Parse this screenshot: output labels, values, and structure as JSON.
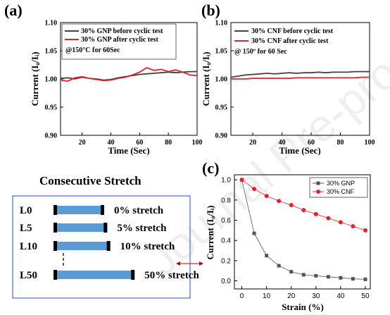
{
  "panels": {
    "a": {
      "tag": "(a)",
      "condition": "@150°C for 60Sec"
    },
    "b": {
      "tag": "(b)",
      "condition": "@ 150º for 60 Sec"
    },
    "c": {
      "tag": "(c)"
    }
  },
  "stretch": {
    "title": "Consecutive Stretch",
    "rows": [
      {
        "label": "L0",
        "text": "0% stretch",
        "fraction": 0.0
      },
      {
        "label": "L5",
        "text": "5% stretch",
        "fraction": 0.05
      },
      {
        "label": "L10",
        "text": "10% stretch",
        "fraction": 0.1
      },
      {
        "label": "L50",
        "text": "50% stretch",
        "fraction": 0.5
      }
    ],
    "bar_color": "#5b9bd5",
    "frame_color": "#4472c4",
    "arrow_color": "#c00000"
  },
  "watermark": "Journal Pre-proofs",
  "chart_data": [
    {
      "id": "a",
      "type": "line",
      "xlabel": "Time (Sec)",
      "ylabel": "Current (I₀/Iᵢ)",
      "xlim": [
        5,
        100
      ],
      "ylim": [
        0.9,
        1.1
      ],
      "xticks": [
        20,
        40,
        60,
        80,
        100
      ],
      "yticks": [
        0.9,
        0.95,
        1.0,
        1.05,
        1.1
      ],
      "legend_position": "top-left",
      "series": [
        {
          "name": "30% GNP before cyclic test",
          "color": "#404040",
          "x": [
            5,
            10,
            15,
            20,
            25,
            30,
            35,
            40,
            45,
            50,
            55,
            60,
            65,
            70,
            75,
            80,
            85,
            90,
            95,
            100
          ],
          "y": [
            1.001,
            1.002,
            1.0,
            1.003,
            1.001,
            1.0,
            0.998,
            0.999,
            1.002,
            1.004,
            1.006,
            1.008,
            1.009,
            1.01,
            1.011,
            1.012,
            1.011,
            1.012,
            1.013,
            1.013
          ]
        },
        {
          "name": "30% GNP after cyclic test",
          "color": "#e8202a",
          "x": [
            5,
            10,
            15,
            20,
            25,
            30,
            35,
            40,
            45,
            50,
            55,
            60,
            65,
            70,
            75,
            80,
            85,
            90,
            95,
            100
          ],
          "y": [
            0.998,
            0.996,
            1.002,
            1.004,
            1.001,
            0.999,
            0.997,
            0.998,
            1.001,
            1.003,
            1.007,
            1.012,
            1.02,
            1.015,
            1.017,
            1.013,
            1.016,
            1.012,
            1.007,
            1.006
          ]
        }
      ]
    },
    {
      "id": "b",
      "type": "line",
      "xlabel": "Time (Sec)",
      "ylabel": "Current (I₀/Iᵢ)",
      "xlim": [
        5,
        100
      ],
      "ylim": [
        0.9,
        1.1
      ],
      "xticks": [
        20,
        40,
        60,
        80,
        100
      ],
      "yticks": [
        0.9,
        0.95,
        1.0,
        1.05,
        1.1
      ],
      "legend_position": "top-left",
      "series": [
        {
          "name": "30% CNF before cyclic test",
          "color": "#404040",
          "x": [
            5,
            10,
            15,
            20,
            25,
            30,
            35,
            40,
            45,
            50,
            55,
            60,
            65,
            70,
            75,
            80,
            85,
            90,
            95,
            100
          ],
          "y": [
            1.003,
            1.005,
            1.007,
            1.008,
            1.009,
            1.01,
            1.009,
            1.01,
            1.011,
            1.01,
            1.011,
            1.011,
            1.012,
            1.011,
            1.012,
            1.012,
            1.012,
            1.013,
            1.013,
            1.013
          ]
        },
        {
          "name": "30% CNF after cyclic test",
          "color": "#e8202a",
          "x": [
            5,
            10,
            15,
            20,
            25,
            30,
            35,
            40,
            45,
            50,
            55,
            60,
            65,
            70,
            75,
            80,
            85,
            90,
            95,
            100
          ],
          "y": [
            1.0,
            1.0,
            1.0,
            1.001,
            1.001,
            1.001,
            1.001,
            1.001,
            1.001,
            1.002,
            1.002,
            1.002,
            1.002,
            1.002,
            1.002,
            1.002,
            1.002,
            1.002,
            1.003,
            1.003
          ]
        }
      ]
    },
    {
      "id": "c",
      "type": "line",
      "xlabel": "Strain (%)",
      "ylabel": "Current (I₀/Iᵢ)",
      "xlim": [
        -3,
        52
      ],
      "ylim": [
        -0.08,
        1.05
      ],
      "xticks": [
        0,
        10,
        20,
        30,
        40,
        50
      ],
      "yticks": [
        0.0,
        0.2,
        0.4,
        0.6,
        0.8,
        1.0
      ],
      "legend_position": "top-right",
      "series": [
        {
          "name": "30% GNP",
          "color": "#555555",
          "marker": "square",
          "x": [
            0,
            5,
            10,
            15,
            20,
            25,
            30,
            35,
            40,
            45,
            50
          ],
          "y": [
            1.0,
            0.47,
            0.25,
            0.15,
            0.09,
            0.06,
            0.05,
            0.04,
            0.03,
            0.02,
            0.015
          ]
        },
        {
          "name": "30% CNF",
          "color": "#e8202a",
          "marker": "circle",
          "x": [
            0,
            5,
            10,
            15,
            20,
            25,
            30,
            35,
            40,
            45,
            50
          ],
          "y": [
            1.0,
            0.91,
            0.84,
            0.79,
            0.75,
            0.7,
            0.66,
            0.62,
            0.58,
            0.54,
            0.5
          ]
        }
      ]
    }
  ]
}
